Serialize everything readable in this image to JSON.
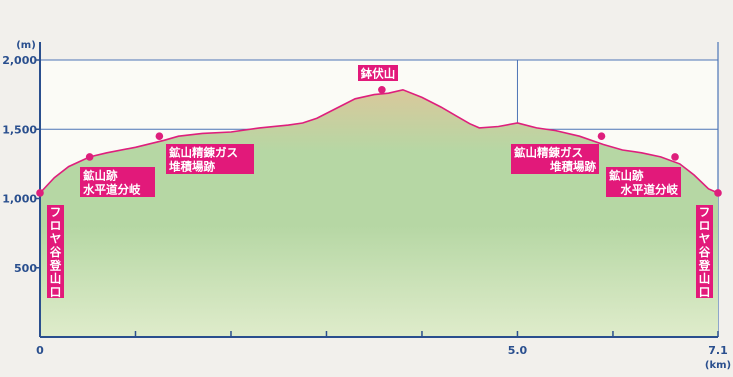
{
  "chart_data": {
    "type": "area",
    "y_unit": "(m)",
    "x_unit": "(km)",
    "xlim": [
      0,
      7.1
    ],
    "ylim": [
      0,
      2000
    ],
    "y_ticks": [
      {
        "value": 500,
        "label": "500"
      },
      {
        "value": 1000,
        "label": "1,000"
      },
      {
        "value": 1500,
        "label": "1,500"
      },
      {
        "value": 2000,
        "label": "2,000"
      }
    ],
    "x_ticks": [
      {
        "value": 0,
        "label": "0"
      },
      {
        "value": 5.0,
        "label": "5.0"
      },
      {
        "value": 7.1,
        "label": "7.1"
      }
    ],
    "x_minor_ticks": [
      1.0,
      2.0,
      3.0,
      4.0,
      6.0
    ],
    "grid": true,
    "profile": [
      [
        0.0,
        1040
      ],
      [
        0.15,
        1150
      ],
      [
        0.3,
        1230
      ],
      [
        0.52,
        1300
      ],
      [
        0.7,
        1330
      ],
      [
        1.0,
        1370
      ],
      [
        1.3,
        1420
      ],
      [
        1.45,
        1450
      ],
      [
        1.7,
        1470
      ],
      [
        2.0,
        1480
      ],
      [
        2.3,
        1510
      ],
      [
        2.6,
        1530
      ],
      [
        2.75,
        1545
      ],
      [
        2.9,
        1580
      ],
      [
        3.1,
        1650
      ],
      [
        3.3,
        1720
      ],
      [
        3.5,
        1750
      ],
      [
        3.65,
        1760
      ],
      [
        3.8,
        1785
      ],
      [
        4.0,
        1730
      ],
      [
        4.2,
        1660
      ],
      [
        4.35,
        1600
      ],
      [
        4.5,
        1540
      ],
      [
        4.6,
        1510
      ],
      [
        4.8,
        1520
      ],
      [
        5.0,
        1545
      ],
      [
        5.2,
        1510
      ],
      [
        5.4,
        1490
      ],
      [
        5.65,
        1450
      ],
      [
        5.9,
        1390
      ],
      [
        6.1,
        1350
      ],
      [
        6.3,
        1330
      ],
      [
        6.5,
        1300
      ],
      [
        6.7,
        1250
      ],
      [
        6.85,
        1170
      ],
      [
        7.0,
        1070
      ],
      [
        7.1,
        1040
      ]
    ],
    "waypoints": [
      {
        "x": 0.0,
        "y": 1040,
        "name": "フロヤ谷登山口"
      },
      {
        "x": 0.52,
        "y": 1300,
        "name": "鉱山跡\n水平道分岐"
      },
      {
        "x": 1.25,
        "y": 1450,
        "name": "鉱山精錬ガス\n堆積場跡"
      },
      {
        "x": 3.58,
        "y": 1785,
        "name": "鉢伏山"
      },
      {
        "x": 5.88,
        "y": 1450,
        "name": "鉱山精錬ガス\n堆積場跡"
      },
      {
        "x": 6.65,
        "y": 1300,
        "name": "鉱山跡\n水平道分岐"
      },
      {
        "x": 7.1,
        "y": 1040,
        "name": "フロヤ谷登山口"
      }
    ]
  },
  "colors": {
    "axis": "#2a4f8e",
    "grid": "#4d74b6",
    "line": "#de1f7c",
    "label_bg": "#e2197a",
    "fill_top": "#d9c89b",
    "fill_upper": "#b6d7a4",
    "fill_lower": "#dfeccb",
    "plot_bg": "#fbfbf6"
  }
}
